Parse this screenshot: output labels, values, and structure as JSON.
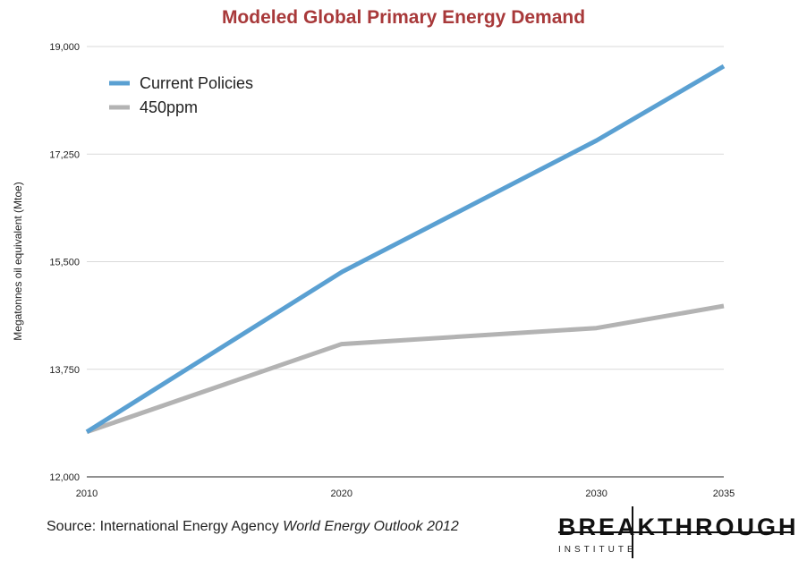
{
  "chart_data": {
    "type": "line",
    "title": "Modeled Global Primary Energy Demand",
    "xlabel": "",
    "ylabel": "Megatonnes oil equivalent (Mtoe)",
    "x": [
      2010,
      2020,
      2030,
      2035
    ],
    "x_tick_labels": [
      "2010",
      "2020",
      "2030",
      "2035"
    ],
    "y_ticks": [
      12000,
      13750,
      15500,
      17250,
      19000
    ],
    "y_tick_labels": [
      "12,000",
      "13,750",
      "15,500",
      "17,250",
      "19,000"
    ],
    "xlim": [
      2010,
      2035
    ],
    "ylim": [
      12000,
      19000
    ],
    "grid": true,
    "legend_position": "top-left",
    "series": [
      {
        "name": "Current Policies",
        "color": "#5aa0d2",
        "values": [
          12730,
          15330,
          17470,
          18680
        ]
      },
      {
        "name": "450ppm",
        "color": "#b3b3b3",
        "values": [
          12730,
          14160,
          14420,
          14780
        ]
      }
    ]
  },
  "footer": {
    "source_prefix": "Source: International Energy Agency ",
    "source_italic": "World Energy Outlook 2012"
  },
  "logo": {
    "name": "BREAKTHROUGH",
    "sub": "INSTITUTE"
  }
}
